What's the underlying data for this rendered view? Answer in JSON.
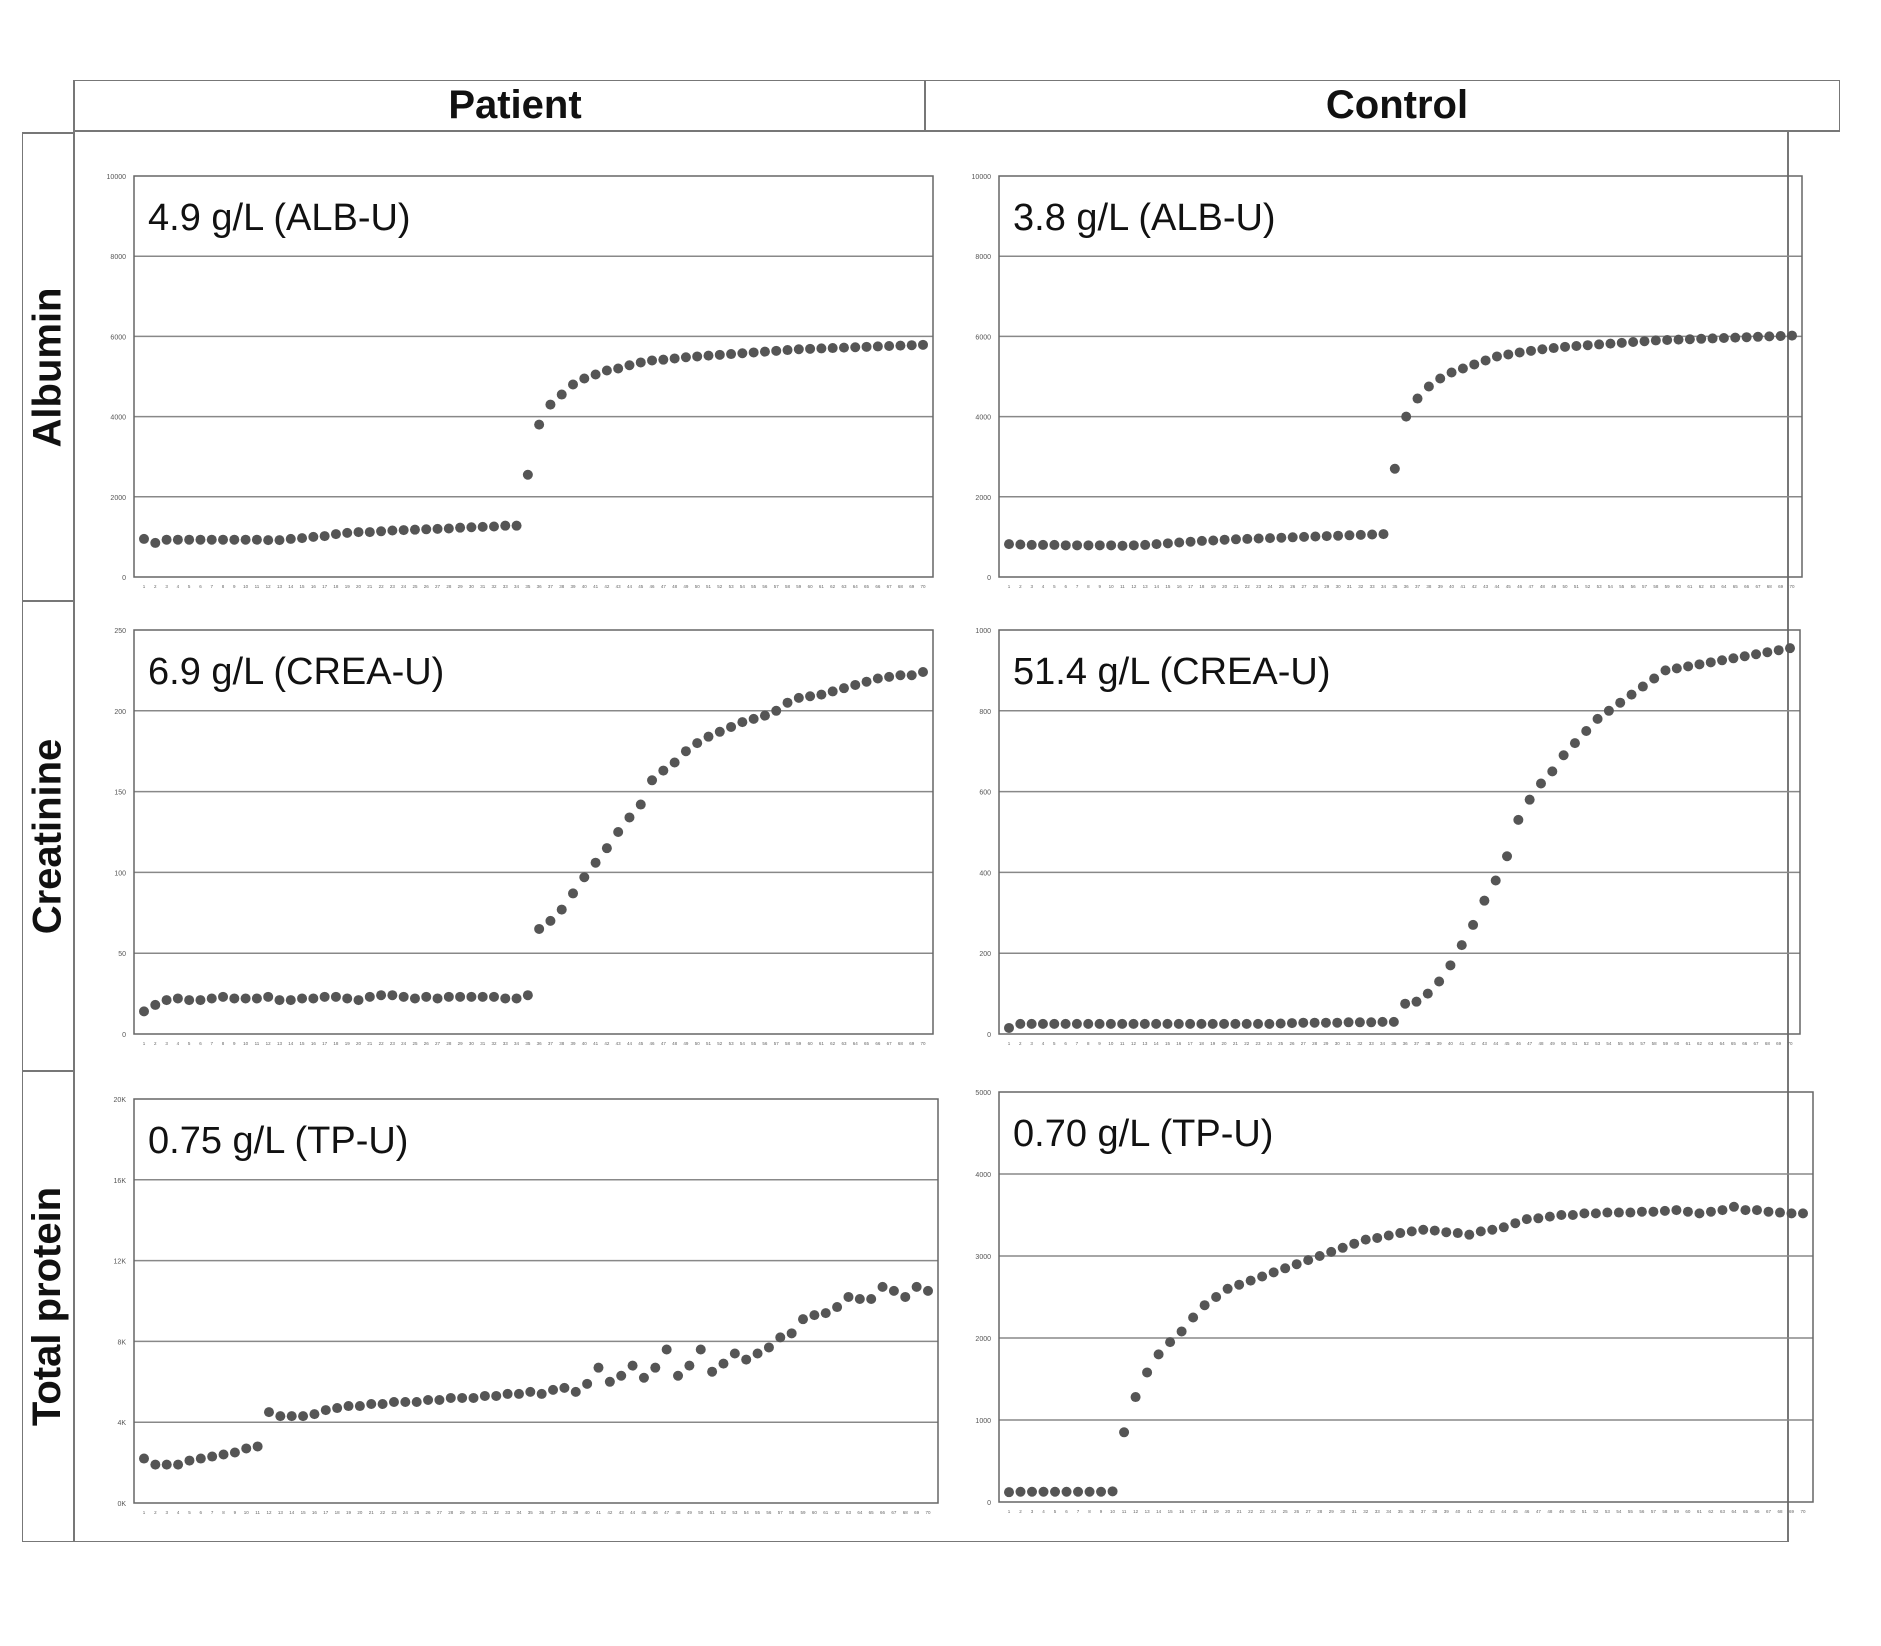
{
  "columns": [
    "Patient",
    "Control"
  ],
  "rows": [
    "Albumin",
    "Creatinine",
    "Total protein"
  ],
  "colors": {
    "dots": "#555555",
    "grid": "#888888",
    "frame": "#666666"
  },
  "chart_data": [
    {
      "type": "scatter",
      "row": "Albumin",
      "column": "Patient",
      "annotation": "4.9 g/L (ALB-U)",
      "ylim": [
        0,
        10000
      ],
      "yticks": [
        "0",
        "2000",
        "4000",
        "6000",
        "8000",
        "10000"
      ],
      "x": [
        1,
        2,
        3,
        4,
        5,
        6,
        7,
        8,
        9,
        10,
        11,
        12,
        13,
        14,
        15,
        16,
        17,
        18,
        19,
        20,
        21,
        22,
        23,
        24,
        25,
        26,
        27,
        28,
        29,
        30,
        31,
        32,
        33,
        34,
        35,
        36,
        37,
        38,
        39,
        40,
        41,
        42,
        43,
        44,
        45,
        46,
        47,
        48,
        49,
        50,
        51,
        52,
        53,
        54,
        55,
        56,
        57,
        58,
        59,
        60,
        61,
        62,
        63,
        64,
        65,
        66,
        67,
        68,
        69,
        70
      ],
      "y": [
        950,
        850,
        930,
        930,
        930,
        930,
        930,
        930,
        930,
        930,
        930,
        920,
        920,
        950,
        970,
        1000,
        1020,
        1070,
        1100,
        1120,
        1120,
        1140,
        1160,
        1170,
        1180,
        1190,
        1200,
        1210,
        1230,
        1240,
        1250,
        1260,
        1280,
        1280,
        2550,
        3800,
        4300,
        4550,
        4800,
        4950,
        5050,
        5150,
        5200,
        5280,
        5350,
        5400,
        5420,
        5450,
        5480,
        5500,
        5520,
        5540,
        5560,
        5580,
        5600,
        5620,
        5640,
        5660,
        5680,
        5690,
        5700,
        5710,
        5720,
        5730,
        5740,
        5750,
        5760,
        5770,
        5780,
        5790
      ]
    },
    {
      "type": "scatter",
      "row": "Albumin",
      "column": "Control",
      "annotation": "3.8 g/L (ALB-U)",
      "ylim": [
        0,
        10000
      ],
      "yticks": [
        "0",
        "2000",
        "4000",
        "6000",
        "8000",
        "10000"
      ],
      "x": [
        1,
        2,
        3,
        4,
        5,
        6,
        7,
        8,
        9,
        10,
        11,
        12,
        13,
        14,
        15,
        16,
        17,
        18,
        19,
        20,
        21,
        22,
        23,
        24,
        25,
        26,
        27,
        28,
        29,
        30,
        31,
        32,
        33,
        34,
        35,
        36,
        37,
        38,
        39,
        40,
        41,
        42,
        43,
        44,
        45,
        46,
        47,
        48,
        49,
        50,
        51,
        52,
        53,
        54,
        55,
        56,
        57,
        58,
        59,
        60,
        61,
        62,
        63,
        64,
        65,
        66,
        67,
        68,
        69,
        70
      ],
      "y": [
        820,
        810,
        800,
        800,
        800,
        790,
        790,
        790,
        790,
        790,
        780,
        790,
        800,
        820,
        840,
        860,
        880,
        900,
        910,
        930,
        940,
        950,
        960,
        970,
        980,
        990,
        1000,
        1010,
        1020,
        1030,
        1040,
        1050,
        1060,
        1070,
        2700,
        4000,
        4450,
        4750,
        4950,
        5100,
        5200,
        5300,
        5400,
        5500,
        5550,
        5600,
        5640,
        5680,
        5710,
        5740,
        5760,
        5780,
        5800,
        5820,
        5840,
        5860,
        5880,
        5900,
        5910,
        5920,
        5930,
        5940,
        5950,
        5960,
        5970,
        5980,
        5990,
        6000,
        6010,
        6020
      ]
    },
    {
      "type": "scatter",
      "row": "Creatinine",
      "column": "Patient",
      "annotation": "6.9 g/L (CREA-U)",
      "ylim": [
        0,
        250
      ],
      "yticks": [
        "0",
        "50",
        "100",
        "150",
        "200",
        "250"
      ],
      "x": [
        1,
        2,
        3,
        4,
        5,
        6,
        7,
        8,
        9,
        10,
        11,
        12,
        13,
        14,
        15,
        16,
        17,
        18,
        19,
        20,
        21,
        22,
        23,
        24,
        25,
        26,
        27,
        28,
        29,
        30,
        31,
        32,
        33,
        34,
        35,
        36,
        37,
        38,
        39,
        40,
        41,
        42,
        43,
        44,
        45,
        46,
        47,
        48,
        49,
        50,
        51,
        52,
        53,
        54,
        55,
        56,
        57,
        58,
        59,
        60,
        61,
        62,
        63,
        64,
        65,
        66,
        67,
        68,
        69,
        70
      ],
      "y": [
        14,
        18,
        21,
        22,
        21,
        21,
        22,
        23,
        22,
        22,
        22,
        23,
        21,
        21,
        22,
        22,
        23,
        23,
        22,
        21,
        23,
        24,
        24,
        23,
        22,
        23,
        22,
        23,
        23,
        23,
        23,
        23,
        22,
        22,
        24,
        65,
        70,
        77,
        87,
        97,
        106,
        115,
        125,
        134,
        142,
        157,
        163,
        168,
        175,
        180,
        184,
        187,
        190,
        193,
        195,
        197,
        200,
        205,
        208,
        209,
        210,
        212,
        214,
        216,
        218,
        220,
        221,
        222,
        222,
        224
      ]
    },
    {
      "type": "scatter",
      "row": "Creatinine",
      "column": "Control",
      "annotation": "51.4 g/L (CREA-U)",
      "ylim": [
        0,
        1000
      ],
      "yticks": [
        "0",
        "200",
        "400",
        "600",
        "800",
        "1000"
      ],
      "x": [
        1,
        2,
        3,
        4,
        5,
        6,
        7,
        8,
        9,
        10,
        11,
        12,
        13,
        14,
        15,
        16,
        17,
        18,
        19,
        20,
        21,
        22,
        23,
        24,
        25,
        26,
        27,
        28,
        29,
        30,
        31,
        32,
        33,
        34,
        35,
        36,
        37,
        38,
        39,
        40,
        41,
        42,
        43,
        44,
        45,
        46,
        47,
        48,
        49,
        50,
        51,
        52,
        53,
        54,
        55,
        56,
        57,
        58,
        59,
        60,
        61,
        62,
        63,
        64,
        65,
        66,
        67,
        68,
        69,
        70
      ],
      "y": [
        15,
        25,
        25,
        25,
        25,
        25,
        25,
        25,
        25,
        25,
        25,
        25,
        25,
        25,
        25,
        25,
        25,
        25,
        25,
        25,
        25,
        25,
        25,
        25,
        26,
        27,
        28,
        28,
        28,
        28,
        29,
        29,
        29,
        30,
        30,
        75,
        80,
        100,
        130,
        170,
        220,
        270,
        330,
        380,
        440,
        530,
        580,
        620,
        650,
        690,
        720,
        750,
        780,
        800,
        820,
        840,
        860,
        880,
        900,
        905,
        910,
        915,
        920,
        925,
        930,
        935,
        940,
        945,
        950,
        955
      ]
    },
    {
      "type": "scatter",
      "row": "Total protein",
      "column": "Patient",
      "annotation": "0.75 g/L (TP-U)",
      "ylim": [
        0,
        20000
      ],
      "yticks": [
        "0K",
        "4K",
        "8K",
        "12K",
        "16K",
        "20K"
      ],
      "x": [
        1,
        2,
        3,
        4,
        5,
        6,
        7,
        8,
        9,
        10,
        11,
        12,
        13,
        14,
        15,
        16,
        17,
        18,
        19,
        20,
        21,
        22,
        23,
        24,
        25,
        26,
        27,
        28,
        29,
        30,
        31,
        32,
        33,
        34,
        35,
        36,
        37,
        38,
        39,
        40,
        41,
        42,
        43,
        44,
        45,
        46,
        47,
        48,
        49,
        50,
        51,
        52,
        53,
        54,
        55,
        56,
        57,
        58,
        59,
        60,
        61,
        62,
        63,
        64,
        65,
        66,
        67,
        68,
        69,
        70
      ],
      "y": [
        2200,
        1900,
        1900,
        1900,
        2100,
        2200,
        2300,
        2400,
        2500,
        2700,
        2800,
        4500,
        4300,
        4300,
        4300,
        4400,
        4600,
        4700,
        4800,
        4800,
        4900,
        4900,
        5000,
        5000,
        5000,
        5100,
        5100,
        5200,
        5200,
        5200,
        5300,
        5300,
        5400,
        5400,
        5500,
        5400,
        5600,
        5700,
        5500,
        5900,
        6700,
        6000,
        6300,
        6800,
        6200,
        6700,
        7600,
        6300,
        6800,
        7600,
        6500,
        6900,
        7400,
        7100,
        7400,
        7700,
        8200,
        8400,
        9100,
        9300,
        9400,
        9700,
        10200,
        10100,
        10100,
        10700,
        10500,
        10200,
        10700,
        10500
      ]
    },
    {
      "type": "scatter",
      "row": "Total protein",
      "column": "Control",
      "annotation": "0.70 g/L (TP-U)",
      "ylim": [
        0,
        5000
      ],
      "yticks": [
        "0",
        "1000",
        "2000",
        "3000",
        "4000",
        "5000"
      ],
      "x": [
        1,
        2,
        3,
        4,
        5,
        6,
        7,
        8,
        9,
        10,
        11,
        12,
        13,
        14,
        15,
        16,
        17,
        18,
        19,
        20,
        21,
        22,
        23,
        24,
        25,
        26,
        27,
        28,
        29,
        30,
        31,
        32,
        33,
        34,
        35,
        36,
        37,
        38,
        39,
        40,
        41,
        42,
        43,
        44,
        45,
        46,
        47,
        48,
        49,
        50,
        51,
        52,
        53,
        54,
        55,
        56,
        57,
        58,
        59,
        60,
        61,
        62,
        63,
        64,
        65,
        66,
        67,
        68,
        69,
        70
      ],
      "y": [
        120,
        125,
        125,
        125,
        125,
        125,
        125,
        125,
        125,
        130,
        850,
        1280,
        1580,
        1800,
        1950,
        2080,
        2250,
        2400,
        2500,
        2600,
        2650,
        2700,
        2750,
        2800,
        2850,
        2900,
        2950,
        3000,
        3050,
        3100,
        3150,
        3200,
        3220,
        3250,
        3280,
        3300,
        3320,
        3310,
        3290,
        3280,
        3260,
        3300,
        3320,
        3350,
        3400,
        3450,
        3460,
        3480,
        3500,
        3500,
        3520,
        3520,
        3530,
        3530,
        3530,
        3540,
        3540,
        3550,
        3560,
        3540,
        3520,
        3540,
        3560,
        3600,
        3560,
        3560,
        3540,
        3530,
        3520,
        3520
      ]
    }
  ]
}
